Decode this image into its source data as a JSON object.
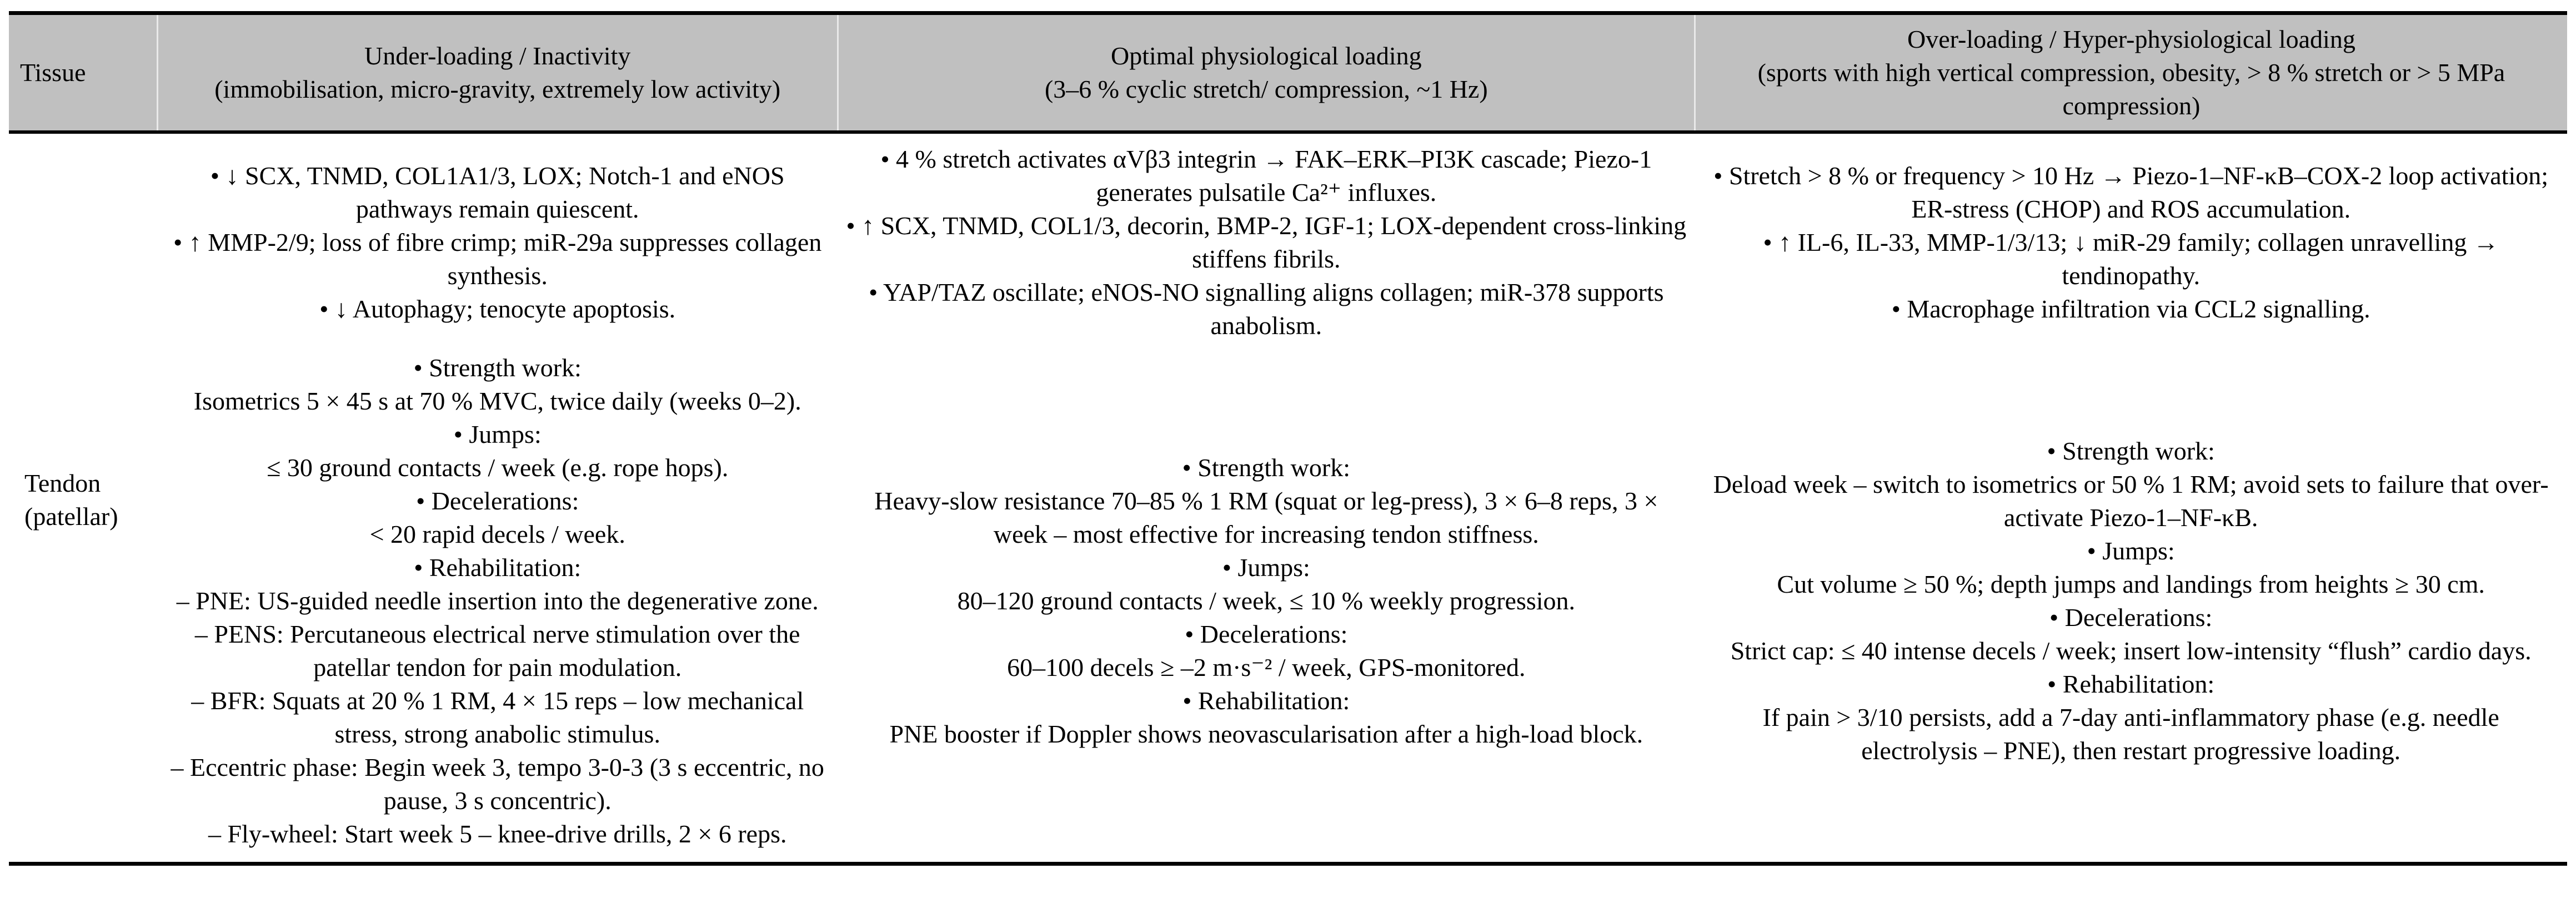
{
  "table": {
    "headers": {
      "tissue": "Tissue",
      "under": {
        "title": "Under-loading / Inactivity",
        "subtitle": "(immobilisation, micro-gravity, extremely low activity)"
      },
      "optimal": {
        "title": "Optimal physiological loading",
        "subtitle": "(3–6 % cyclic stretch/ compression, ~1 Hz)"
      },
      "over": {
        "title": "Over-loading / Hyper-physiological loading",
        "subtitle": "(sports with high vertical compression, obesity, > 8 % stretch or > 5 MPa compression)"
      }
    },
    "row": {
      "tissue": "Tendon (patellar)",
      "under": {
        "mechanisms": [
          "• ↓ SCX, TNMD, COL1A1/3, LOX; Notch-1 and eNOS pathways remain quiescent.",
          "• ↑ MMP-2/9; loss of fibre crimp; miR-29a suppresses collagen synthesis.",
          "• ↓ Autophagy; tenocyte apoptosis."
        ],
        "protocol": [
          "• Strength work:",
          "Isometrics 5 × 45 s at 70 % MVC, twice daily (weeks 0–2).",
          "• Jumps:",
          "≤ 30 ground contacts / week (e.g. rope hops).",
          "• Decelerations:",
          "< 20 rapid decels / week.",
          "• Rehabilitation:",
          "– PNE: US-guided needle insertion into the degenerative zone.",
          "– PENS: Percutaneous electrical nerve stimulation over the patellar tendon for pain modulation.",
          "– BFR: Squats at 20 % 1 RM, 4 × 15 reps – low mechanical stress, strong anabolic stimulus.",
          "– Eccentric phase: Begin week 3, tempo 3-0-3 (3 s eccentric, no pause, 3 s concentric).",
          "– Fly-wheel: Start week 5 – knee-drive drills, 2 × 6 reps."
        ]
      },
      "optimal": {
        "mechanisms": [
          "• 4 % stretch activates αVβ3 integrin → FAK–ERK–PI3K cascade; Piezo-1 generates pulsatile Ca²⁺ influxes.",
          "• ↑ SCX, TNMD, COL1/3, decorin, BMP-2, IGF-1; LOX-dependent cross-linking stiffens fibrils.",
          "• YAP/TAZ oscillate; eNOS-NO signalling aligns collagen; miR-378 supports anabolism."
        ],
        "protocol": [
          "• Strength work:",
          "Heavy-slow resistance 70–85 % 1 RM (squat or leg-press), 3 × 6–8 reps, 3 × week – most effective for increasing tendon stiffness.",
          "• Jumps:",
          "80–120 ground contacts / week, ≤ 10 % weekly progression.",
          "• Decelerations:",
          "60–100 decels ≥ –2 m·s⁻² / week, GPS-monitored.",
          "• Rehabilitation:",
          "PNE booster if Doppler shows neovascularisation after a high-load block."
        ]
      },
      "over": {
        "mechanisms": [
          "• Stretch > 8 % or frequency > 10 Hz → Piezo-1–NF-κB–COX-2 loop activation; ER-stress (CHOP) and ROS accumulation.",
          "• ↑ IL-6, IL-33, MMP-1/3/13; ↓ miR-29 family; collagen unravelling → tendinopathy.",
          "• Macrophage infiltration via CCL2 signalling."
        ],
        "protocol": [
          "• Strength work:",
          "Deload week – switch to isometrics or 50 % 1 RM; avoid sets to failure that over-activate Piezo-1–NF-κB.",
          "• Jumps:",
          "Cut volume ≥ 50 %; depth jumps and landings from heights ≥ 30 cm.",
          "• Decelerations:",
          "Strict cap: ≤ 40 intense decels / week; insert low-intensity “flush” cardio days.",
          "• Rehabilitation:",
          "If pain > 3/10 persists, add a 7-day anti-inflammatory phase (e.g. needle electrolysis – PNE), then restart progressive loading."
        ]
      }
    }
  }
}
